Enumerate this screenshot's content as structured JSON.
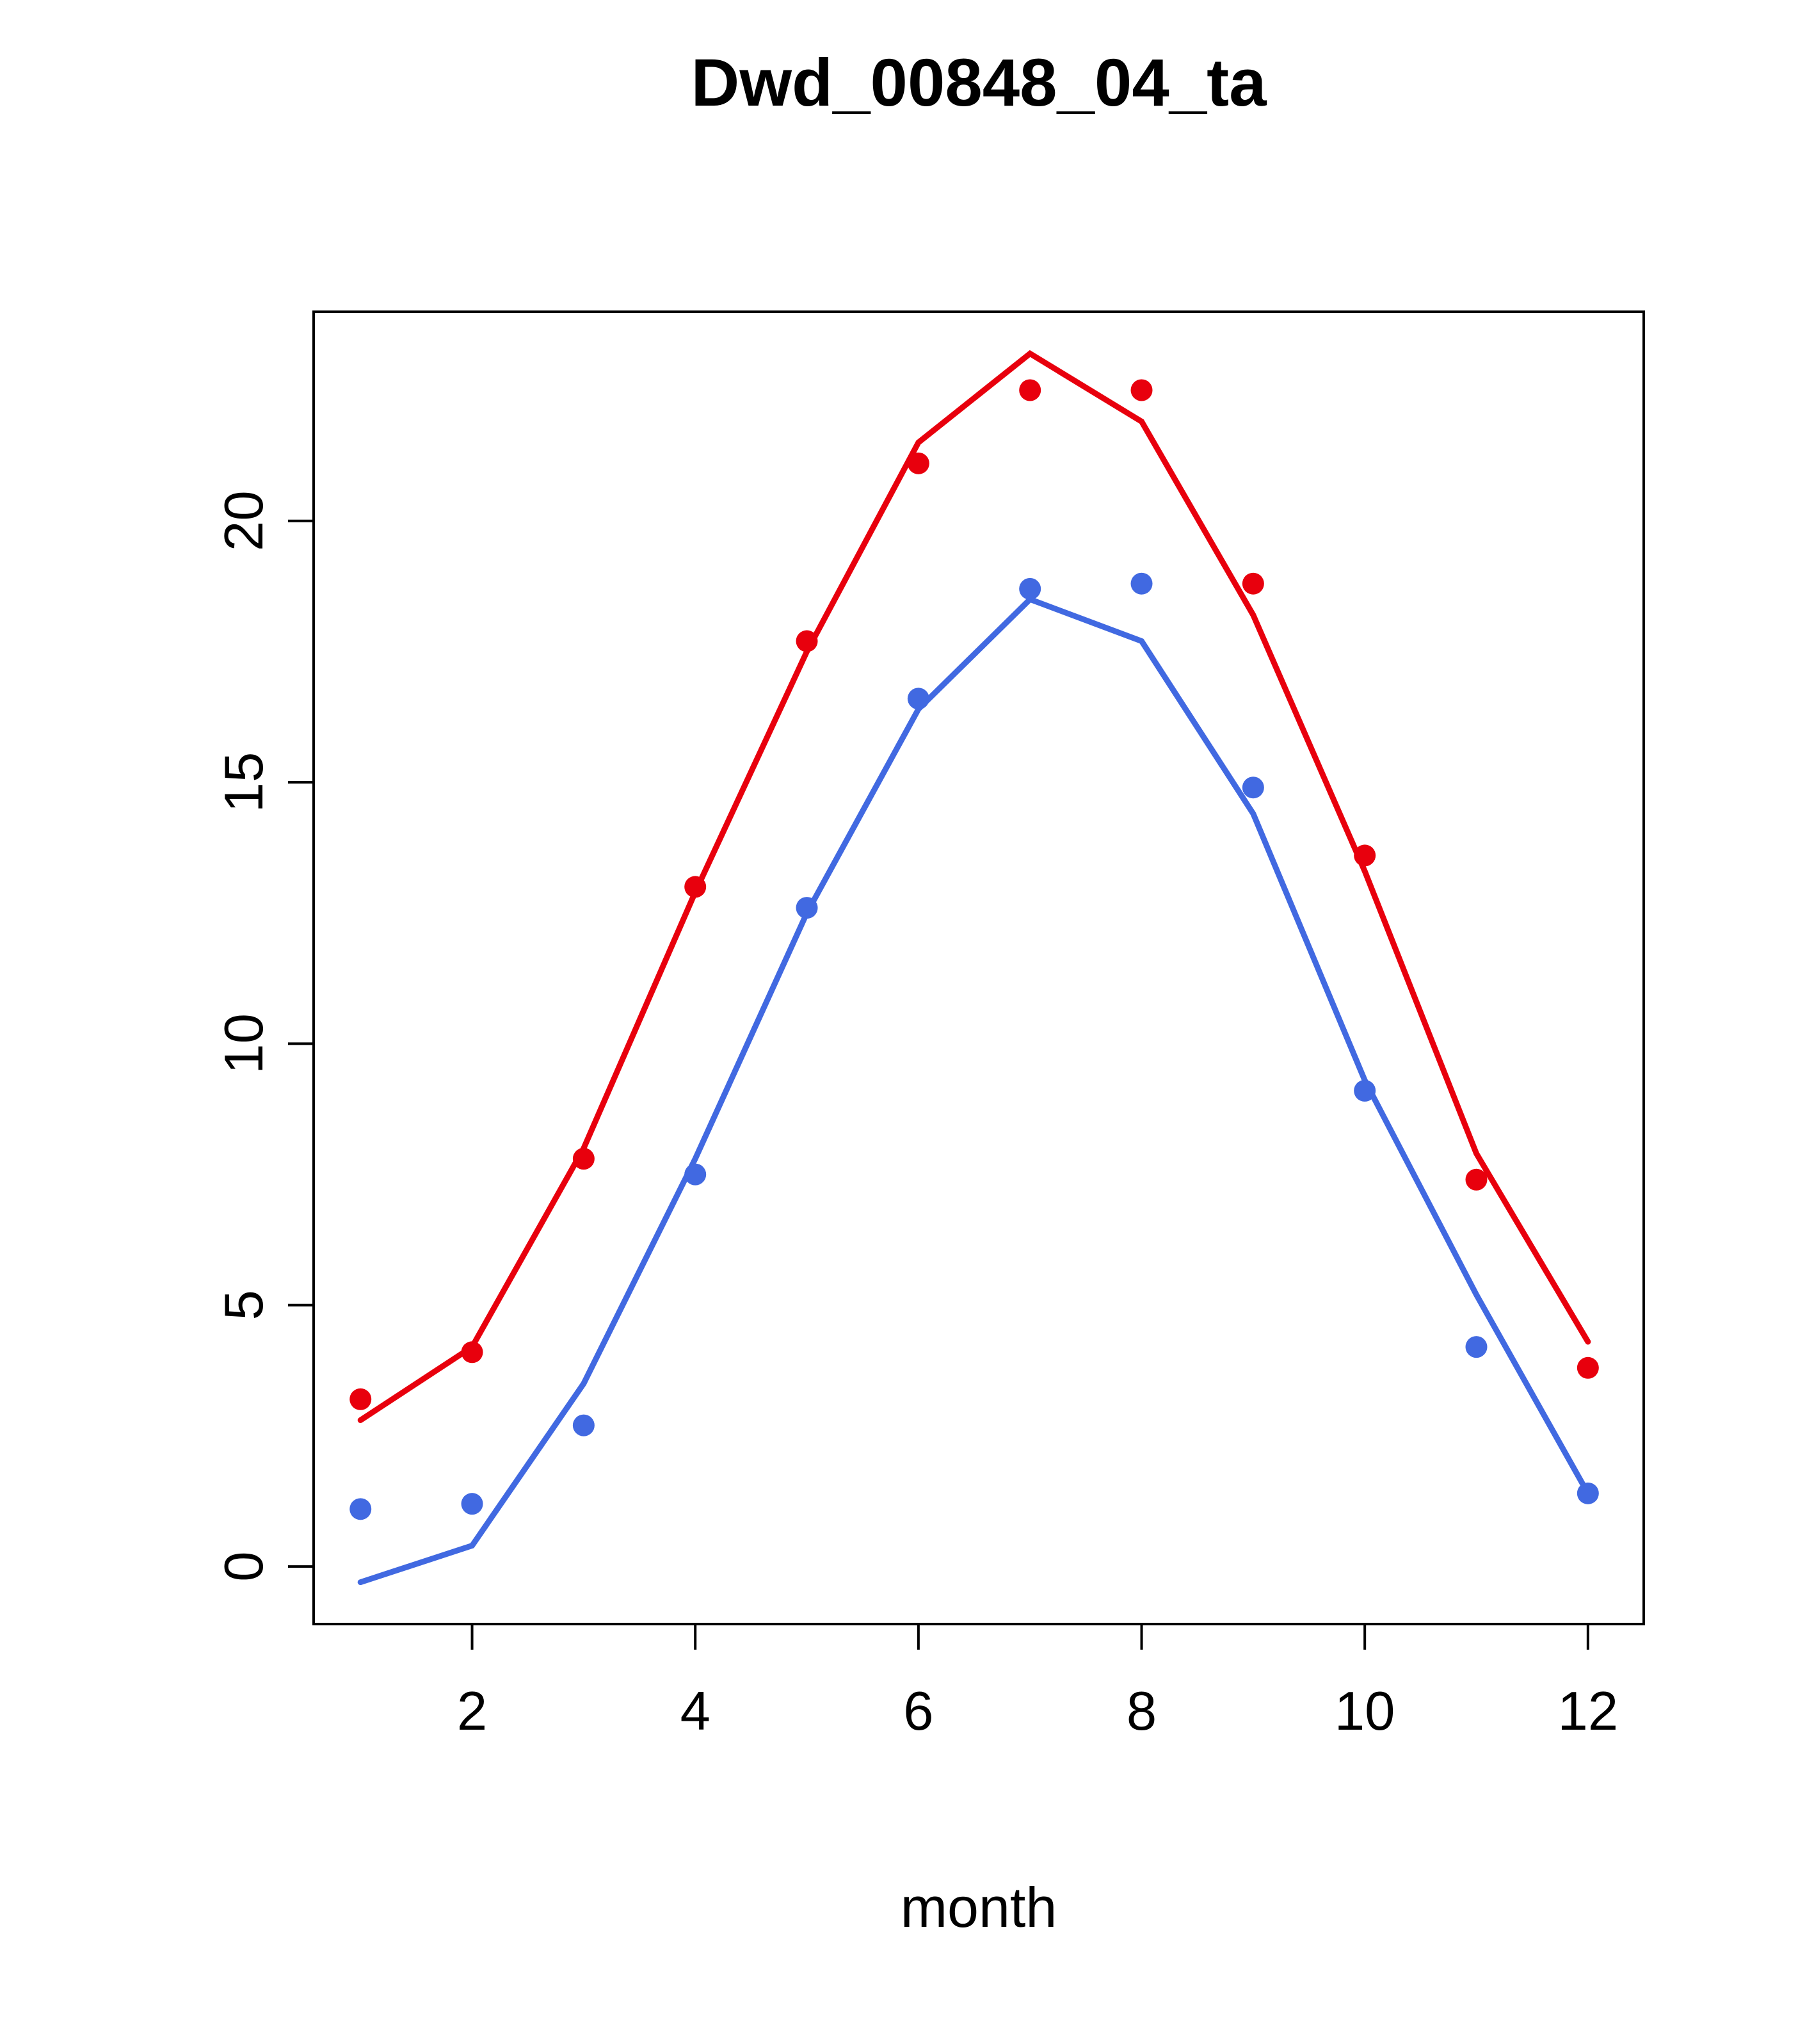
{
  "chart_data": {
    "type": "line",
    "title": "Dwd_00848_04_ta",
    "xlabel": "month",
    "ylabel": "",
    "x": [
      1,
      2,
      3,
      4,
      5,
      6,
      7,
      8,
      9,
      10,
      11,
      12
    ],
    "xlim": [
      0.58,
      12.5
    ],
    "ylim": [
      -1.1,
      24.0
    ],
    "x_ticks": [
      2,
      4,
      6,
      8,
      10,
      12
    ],
    "y_ticks": [
      0,
      5,
      10,
      15,
      20
    ],
    "grid": false,
    "legend": "none",
    "colors": {
      "red": "#e8000d",
      "blue": "#4169e1"
    },
    "series": [
      {
        "name": "red-line",
        "kind": "line",
        "color": "#e8000d",
        "values": [
          2.8,
          4.2,
          8.0,
          12.9,
          17.5,
          21.5,
          23.2,
          21.9,
          18.2,
          13.3,
          7.9,
          4.3
        ]
      },
      {
        "name": "red-points",
        "kind": "points",
        "color": "#e8000d",
        "values": [
          3.2,
          4.1,
          7.8,
          13.0,
          17.7,
          21.1,
          22.5,
          22.5,
          18.8,
          13.6,
          7.4,
          3.8
        ]
      },
      {
        "name": "blue-line",
        "kind": "line",
        "color": "#4169e1",
        "values": [
          -0.3,
          0.4,
          3.5,
          7.8,
          12.5,
          16.4,
          18.5,
          17.7,
          14.4,
          9.3,
          5.2,
          1.4
        ]
      },
      {
        "name": "blue-points",
        "kind": "points",
        "color": "#4169e1",
        "values": [
          1.1,
          1.2,
          2.7,
          7.5,
          12.6,
          16.6,
          18.7,
          18.8,
          14.9,
          9.1,
          4.2,
          1.4
        ]
      }
    ]
  }
}
